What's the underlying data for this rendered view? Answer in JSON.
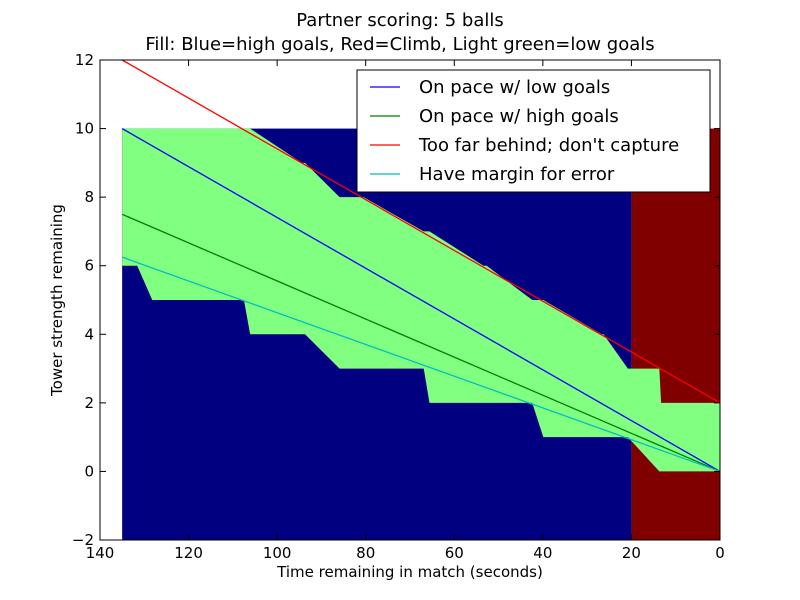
{
  "chart_data": {
    "type": "line",
    "title": "Partner scoring: 5 balls",
    "subtitle": "Fill: Blue=high goals, Red=Climb, Light green=low goals",
    "xlabel": "Time remaining in match (seconds)",
    "ylabel": "Tower strength remaining",
    "xlim": [
      140,
      0
    ],
    "ylim": [
      -2,
      12
    ],
    "x_ticks": [
      140,
      120,
      100,
      80,
      60,
      40,
      20,
      0
    ],
    "y_ticks": [
      -2,
      0,
      2,
      4,
      6,
      8,
      10,
      12
    ],
    "x_inverted": true,
    "grid": false,
    "legend_position": "upper-right",
    "colors": {
      "high_goals_fill": "#000080",
      "climb_fill": "#800000",
      "low_goals_fill": "#80ff80",
      "low_pace_line": "#0000ff",
      "high_pace_line": "#008000",
      "behind_line": "#ff0000",
      "margin_line": "#00bfbf"
    },
    "series": [
      {
        "name": "On pace w/ low goals",
        "color": "#0000ff",
        "x": [
          135,
          0
        ],
        "y": [
          10,
          0
        ]
      },
      {
        "name": "On pace w/ high goals",
        "color": "#008000",
        "x": [
          135,
          0
        ],
        "y": [
          7.5,
          0
        ]
      },
      {
        "name": "Too far behind; don't capture",
        "color": "#ff0000",
        "x": [
          135,
          0
        ],
        "y": [
          12,
          2
        ]
      },
      {
        "name": "Have margin for error",
        "color": "#00bfbf",
        "x": [
          135,
          0
        ],
        "y": [
          6.25,
          0
        ]
      }
    ],
    "fill_regions": [
      {
        "label": "Blue",
        "meaning": "high goals",
        "color": "#000080",
        "x_start": 135,
        "x_end": 20,
        "y_min": -2,
        "y_max": 10
      },
      {
        "label": "Red",
        "meaning": "Climb",
        "color": "#800000",
        "x_start": 20,
        "x_end": 0,
        "y_min": -2,
        "y_max": 10
      }
    ],
    "low_goals_band": {
      "label": "Light green",
      "meaning": "low goals",
      "color": "#80ff80",
      "x": [
        135,
        131.6,
        128.2,
        107.5,
        106.1,
        94.4,
        93.7,
        85.9,
        80.5,
        66.9,
        65.6,
        53.4,
        52.7,
        42.4,
        39.9,
        26.7,
        26.3,
        20.8,
        13.7,
        13.3,
        0
      ],
      "upper": [
        10,
        10,
        10,
        10,
        10,
        9,
        9,
        8,
        8,
        7,
        7,
        6,
        6,
        5,
        5,
        4,
        4,
        3,
        3,
        2,
        2
      ],
      "lower": [
        6,
        6,
        5,
        5,
        4,
        4,
        4,
        3,
        3,
        3,
        2,
        2,
        2,
        2,
        1,
        1,
        1,
        1,
        0,
        0,
        0
      ]
    }
  }
}
